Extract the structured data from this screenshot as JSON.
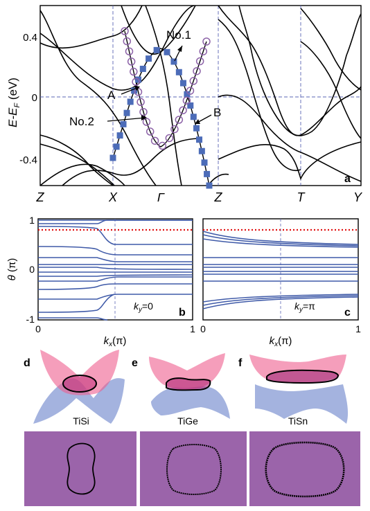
{
  "panel_a": {
    "letter": "a",
    "ylabel_main": "E-E",
    "ylabel_sub": "F",
    "ylabel_unit": " (eV)",
    "yticks": [
      "0.4",
      "0",
      "-0.4"
    ],
    "kpoints": [
      "Z",
      "X",
      "Γ",
      "Z",
      "T",
      "Y"
    ],
    "annotations": {
      "no1": "No.1",
      "no2": "No.2",
      "A": "A",
      "B": "B"
    }
  },
  "panel_b": {
    "letter": "b",
    "ylabel_main": "θ",
    "ylabel_unit": " (π)",
    "yticks": [
      "1",
      "0",
      "-1"
    ],
    "xticks": [
      "0",
      "1"
    ],
    "xlabel_main": "k",
    "xlabel_sub": "x",
    "xlabel_unit": "(π)",
    "note_main": "k",
    "note_sub": "y",
    "note_value": "=0"
  },
  "panel_c": {
    "letter": "c",
    "xticks": [
      "0",
      "1"
    ],
    "xlabel_main": "k",
    "xlabel_sub": "x",
    "xlabel_unit": "(π)",
    "note_main": "k",
    "note_sub": "y",
    "note_value": "=π"
  },
  "surfaces": {
    "letters": [
      "d",
      "e",
      "f"
    ],
    "names": [
      "TiSi",
      "TiGe",
      "TiSn"
    ]
  },
  "colors": {
    "band": "#000000",
    "blue_marker": "#4c6cb8",
    "purple_marker": "#8d63a8",
    "guide": "#5a64b4",
    "wilson": "#3f5aa8",
    "dotted": "#e01010",
    "square_bg": "#9b64aa",
    "surface_pink": "#ef5d8e",
    "surface_blue": "#5a74c4"
  }
}
